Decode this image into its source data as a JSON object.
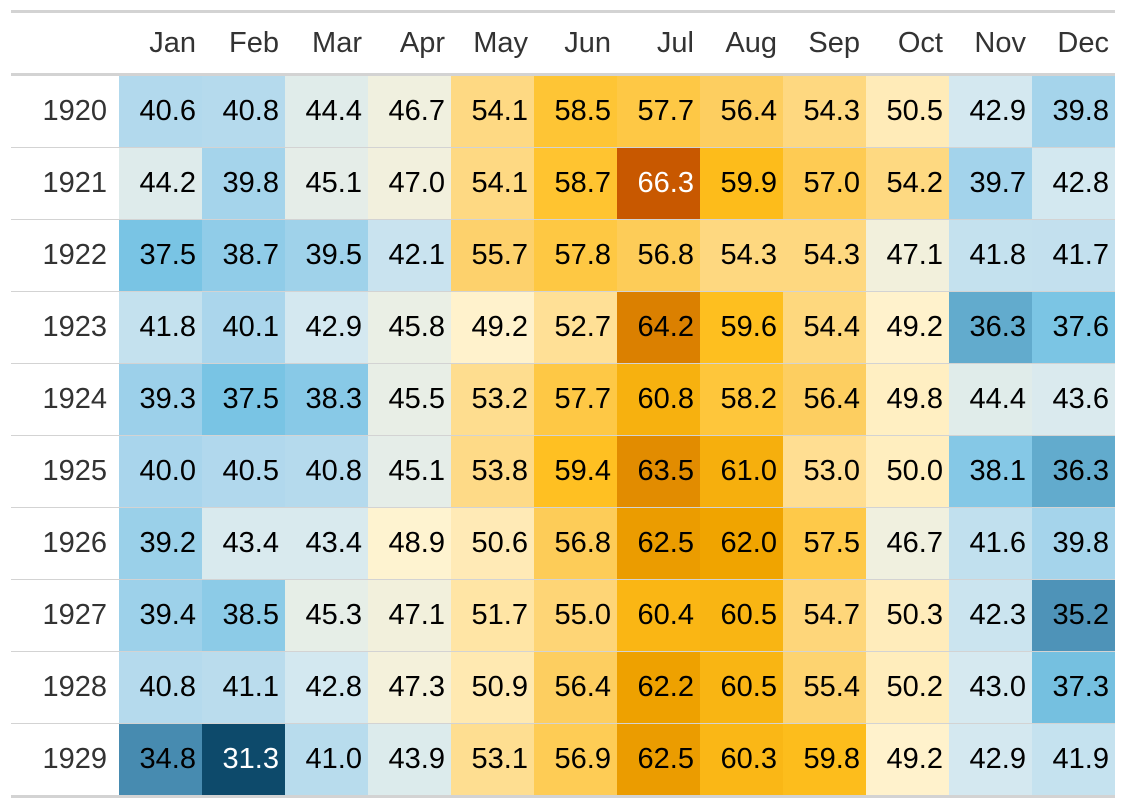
{
  "chart_data": {
    "type": "heatmap",
    "columns": [
      "",
      "Jan",
      "Feb",
      "Mar",
      "Apr",
      "May",
      "Jun",
      "Jul",
      "Aug",
      "Sep",
      "Oct",
      "Nov",
      "Dec"
    ],
    "rows": [
      {
        "year": "1920",
        "values": [
          40.6,
          40.8,
          44.4,
          46.7,
          54.1,
          58.5,
          57.7,
          56.4,
          54.3,
          50.5,
          42.9,
          39.8
        ]
      },
      {
        "year": "1921",
        "values": [
          44.2,
          39.8,
          45.1,
          47.0,
          54.1,
          58.7,
          66.3,
          59.9,
          57.0,
          54.2,
          39.7,
          42.8
        ]
      },
      {
        "year": "1922",
        "values": [
          37.5,
          38.7,
          39.5,
          42.1,
          55.7,
          57.8,
          56.8,
          54.3,
          54.3,
          47.1,
          41.8,
          41.7
        ]
      },
      {
        "year": "1923",
        "values": [
          41.8,
          40.1,
          42.9,
          45.8,
          49.2,
          52.7,
          64.2,
          59.6,
          54.4,
          49.2,
          36.3,
          37.6
        ]
      },
      {
        "year": "1924",
        "values": [
          39.3,
          37.5,
          38.3,
          45.5,
          53.2,
          57.7,
          60.8,
          58.2,
          56.4,
          49.8,
          44.4,
          43.6
        ]
      },
      {
        "year": "1925",
        "values": [
          40.0,
          40.5,
          40.8,
          45.1,
          53.8,
          59.4,
          63.5,
          61.0,
          53.0,
          50.0,
          38.1,
          36.3
        ]
      },
      {
        "year": "1926",
        "values": [
          39.2,
          43.4,
          43.4,
          48.9,
          50.6,
          56.8,
          62.5,
          62.0,
          57.5,
          46.7,
          41.6,
          39.8
        ]
      },
      {
        "year": "1927",
        "values": [
          39.4,
          38.5,
          45.3,
          47.1,
          51.7,
          55.0,
          60.4,
          60.5,
          54.7,
          50.3,
          42.3,
          35.2
        ]
      },
      {
        "year": "1928",
        "values": [
          40.8,
          41.1,
          42.8,
          47.3,
          50.9,
          56.4,
          62.2,
          60.5,
          55.4,
          50.2,
          43.0,
          37.3
        ]
      },
      {
        "year": "1929",
        "values": [
          34.8,
          31.3,
          41.0,
          43.9,
          53.1,
          56.9,
          62.5,
          60.3,
          59.8,
          49.2,
          42.9,
          41.9
        ]
      }
    ],
    "color_scale": {
      "domain": [
        31.3,
        66.3
      ],
      "stops": [
        [
          31.3,
          "#0d4a6b"
        ],
        [
          35.0,
          "#4a8fb4"
        ],
        [
          37.5,
          "#79c4e4"
        ],
        [
          40.0,
          "#a9d5ec"
        ],
        [
          43.0,
          "#d6e9f0"
        ],
        [
          46.0,
          "#ebefe4"
        ],
        [
          49.0,
          "#fff3cf"
        ],
        [
          52.0,
          "#ffe3a0"
        ],
        [
          56.0,
          "#fdd068"
        ],
        [
          59.5,
          "#ffc020"
        ],
        [
          62.0,
          "#f0a400"
        ],
        [
          64.0,
          "#dd8400"
        ],
        [
          66.3,
          "#c85800"
        ]
      ],
      "light_text_threshold": 33.0,
      "dark_text_hot_threshold": 66.0
    }
  }
}
